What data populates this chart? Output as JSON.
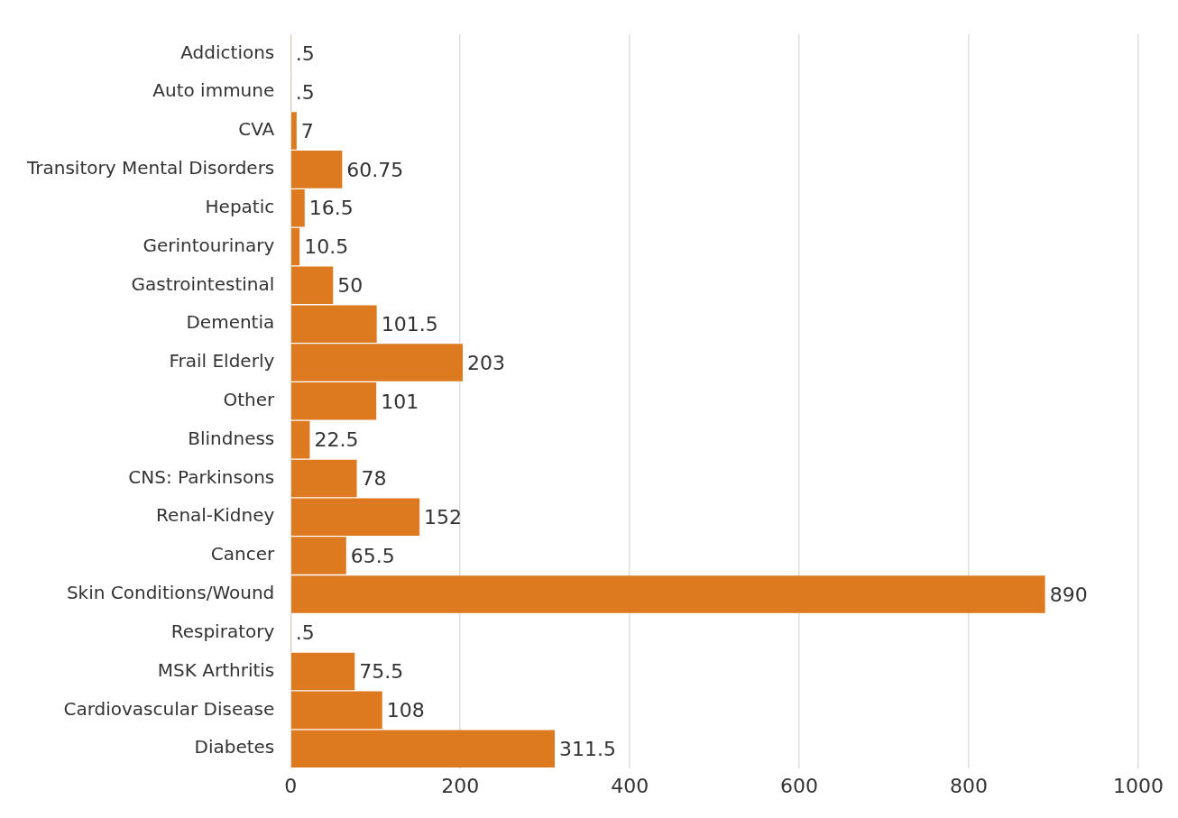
{
  "chart_data": {
    "type": "bar",
    "orientation": "horizontal",
    "categories": [
      "Addictions",
      "Auto immune",
      "CVA",
      "Transitory Mental Disorders",
      "Hepatic",
      "Gerintourinary",
      "Gastrointestinal",
      "Dementia",
      "Frail Elderly",
      "Other",
      "Blindness",
      "CNS: Parkinsons",
      "Renal-Kidney",
      "Cancer",
      "Skin Conditions/Wound",
      "Respiratory",
      "MSK Arthritis",
      "Cardiovascular Disease",
      "Diabetes"
    ],
    "series": [
      {
        "color": "#dd7a1f",
        "values": [
          0.5,
          0.5,
          7,
          60.75,
          16.5,
          10.5,
          50,
          101.5,
          203,
          101,
          22.5,
          78,
          152,
          65.5,
          890,
          0.5,
          75.5,
          108,
          311.5
        ],
        "value_labels": [
          ".5",
          ".5",
          "7",
          "60.75",
          "16.5",
          "10.5",
          "50",
          "101.5",
          "203",
          "101",
          "22.5",
          "78",
          "152",
          "65.5",
          "890",
          ".5",
          "75.5",
          "108",
          "311.5"
        ]
      }
    ],
    "xlim": [
      0,
      1000
    ],
    "xticks": [
      0,
      200,
      400,
      600,
      800,
      1000
    ],
    "grid": "x",
    "legend": false
  }
}
